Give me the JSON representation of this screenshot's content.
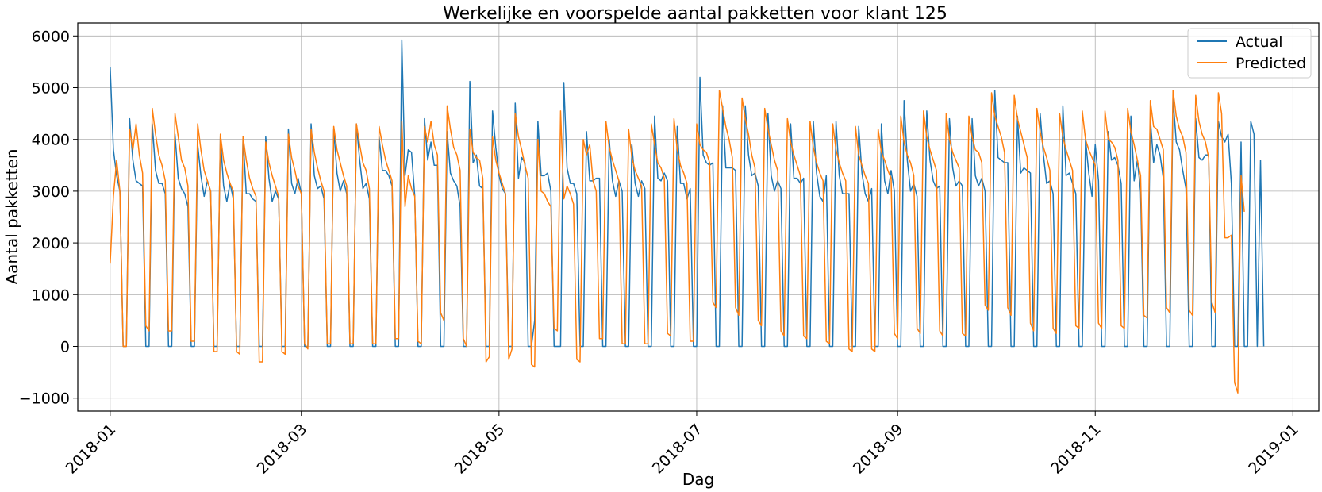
{
  "chart_data": {
    "type": "line",
    "title": "Werkelijke en voorspelde aantal pakketten voor klant 125",
    "xlabel": "Dag",
    "ylabel": "Aantal pakketten",
    "x_start": "2018-01-01",
    "x_end": "2018-12-31",
    "xlim": [
      "2017-12-22",
      "2019-01-09"
    ],
    "ylim": [
      -1250,
      6250
    ],
    "x_ticks": [
      "2018-01",
      "2018-03",
      "2018-05",
      "2018-07",
      "2018-09",
      "2018-11",
      "2019-01"
    ],
    "y_ticks": [
      -1000,
      0,
      1000,
      2000,
      3000,
      4000,
      5000,
      6000
    ],
    "grid": true,
    "legend_position": "top-right",
    "series": [
      {
        "name": "Actual",
        "color": "#1f77b4",
        "values": [
          5400,
          3800,
          3300,
          3000,
          0,
          0,
          4400,
          3600,
          3200,
          3150,
          3100,
          0,
          0,
          4300,
          3400,
          3150,
          3150,
          2950,
          0,
          0,
          4100,
          3250,
          3050,
          2950,
          2700,
          0,
          0,
          3900,
          3300,
          2900,
          3200,
          3000,
          0,
          0,
          4050,
          3100,
          2800,
          3150,
          2850,
          0,
          0,
          4050,
          2950,
          2950,
          2850,
          2800,
          0,
          0,
          4050,
          3250,
          2800,
          3000,
          2850,
          0,
          0,
          4200,
          3150,
          2950,
          3250,
          2950,
          0,
          0,
          4300,
          3300,
          3050,
          3100,
          2850,
          0,
          0,
          4200,
          3350,
          3000,
          3200,
          2950,
          0,
          0,
          4300,
          3600,
          3050,
          3150,
          2850,
          0,
          0,
          4050,
          3400,
          3400,
          3300,
          3100,
          0,
          0,
          5920,
          3300,
          3800,
          3750,
          2900,
          0,
          0,
          4400,
          3600,
          3950,
          3500,
          3500,
          0,
          0,
          4150,
          3350,
          3200,
          3100,
          2700,
          0,
          0,
          5120,
          3550,
          3700,
          3100,
          3050,
          0,
          0,
          4550,
          3850,
          3300,
          3050,
          2950,
          0,
          0,
          4700,
          3250,
          3650,
          3550,
          0,
          0,
          500,
          4350,
          3300,
          3300,
          3350,
          3000,
          0,
          0,
          0,
          5100,
          3450,
          3150,
          3150,
          2950,
          0,
          0,
          4150,
          3200,
          3200,
          3250,
          3250,
          0,
          0,
          4000,
          3200,
          2900,
          3200,
          3000,
          0,
          0,
          3900,
          3150,
          2900,
          3200,
          3050,
          0,
          0,
          4450,
          3250,
          3200,
          3350,
          3200,
          0,
          0,
          4250,
          3150,
          3150,
          2850,
          3050,
          0,
          0,
          5200,
          3700,
          3550,
          3500,
          3550,
          0,
          0,
          4650,
          3450,
          3450,
          3450,
          3400,
          0,
          0,
          4650,
          3700,
          3300,
          3350,
          3100,
          0,
          0,
          4500,
          3300,
          3000,
          3200,
          3050,
          0,
          0,
          4300,
          3250,
          3250,
          3150,
          3250,
          0,
          0,
          4350,
          3350,
          2900,
          2800,
          3300,
          0,
          0,
          4350,
          3300,
          2950,
          2950,
          2950,
          0,
          0,
          4250,
          3350,
          2950,
          2800,
          3050,
          0,
          0,
          4300,
          3200,
          2950,
          3400,
          3000,
          0,
          0,
          4750,
          3600,
          3000,
          3150,
          2900,
          0,
          0,
          4550,
          3600,
          3200,
          3050,
          3100,
          0,
          0,
          4400,
          3450,
          3100,
          3200,
          3100,
          0,
          0,
          4400,
          3300,
          3100,
          3250,
          3000,
          0,
          0,
          4950,
          3650,
          3600,
          3550,
          3550,
          0,
          0,
          4450,
          3350,
          3450,
          3400,
          3350,
          0,
          0,
          4500,
          3700,
          3150,
          3200,
          2950,
          0,
          0,
          4650,
          3300,
          3350,
          3150,
          2950,
          0,
          0,
          4000,
          3350,
          2900,
          3900,
          3200,
          0,
          0,
          4150,
          3600,
          3650,
          3500,
          3150,
          0,
          0,
          4450,
          3200,
          3600,
          3000,
          0,
          0,
          4400,
          3550,
          3900,
          3700,
          3250,
          0,
          0,
          4800,
          3950,
          3800,
          3400,
          3050,
          0,
          0,
          4400,
          3650,
          3600,
          3700,
          3700,
          0,
          0,
          4350,
          4050,
          3950,
          4100,
          3150,
          0,
          0,
          3950,
          0,
          0,
          4350,
          4100,
          0,
          3600,
          0
        ]
      },
      {
        "name": "Predicted",
        "color": "#ff7f0e",
        "values": [
          1600,
          2900,
          3600,
          3000,
          0,
          0,
          4200,
          3800,
          4300,
          3700,
          3350,
          400,
          300,
          4600,
          4100,
          3700,
          3500,
          3200,
          300,
          300,
          4500,
          4050,
          3600,
          3450,
          3100,
          100,
          100,
          4300,
          3800,
          3400,
          3200,
          3000,
          -100,
          -100,
          4100,
          3600,
          3350,
          3150,
          3000,
          -100,
          -150,
          4050,
          3600,
          3250,
          3050,
          2900,
          -300,
          -300,
          3950,
          3550,
          3300,
          3100,
          2900,
          -100,
          -150,
          4100,
          3650,
          3400,
          3100,
          2950,
          50,
          -50,
          4200,
          3750,
          3450,
          3200,
          3000,
          50,
          50,
          4250,
          3800,
          3550,
          3300,
          3100,
          50,
          50,
          4300,
          3900,
          3550,
          3400,
          3050,
          50,
          50,
          4250,
          3900,
          3600,
          3400,
          3200,
          150,
          150,
          4350,
          2700,
          3300,
          3050,
          2900,
          100,
          50,
          4250,
          3950,
          4350,
          3900,
          3700,
          650,
          500,
          4650,
          4200,
          3850,
          3700,
          3400,
          150,
          0,
          4200,
          3750,
          3650,
          3600,
          3250,
          -300,
          -200,
          4050,
          3600,
          3350,
          3150,
          2950,
          -250,
          -50,
          4500,
          4050,
          3800,
          3500,
          3250,
          -350,
          -400,
          4000,
          3000,
          2950,
          2800,
          2700,
          350,
          300,
          4550,
          2850,
          3100,
          2950,
          2750,
          -250,
          -300,
          4000,
          3700,
          3900,
          3200,
          3000,
          150,
          150,
          4350,
          3850,
          3600,
          3400,
          3200,
          50,
          50,
          4200,
          3650,
          3400,
          3250,
          3100,
          50,
          50,
          4300,
          3900,
          3550,
          3450,
          3250,
          250,
          200,
          4400,
          3800,
          3500,
          3350,
          3150,
          100,
          100,
          4300,
          3900,
          3800,
          3750,
          3550,
          850,
          750,
          4950,
          4600,
          4250,
          4000,
          3650,
          750,
          600,
          4800,
          4400,
          4100,
          3700,
          3450,
          500,
          400,
          4600,
          4200,
          3900,
          3600,
          3400,
          300,
          200,
          4400,
          3950,
          3700,
          3500,
          3300,
          200,
          150,
          4350,
          3850,
          3550,
          3350,
          3200,
          100,
          50,
          4300,
          3800,
          3550,
          3350,
          3200,
          -50,
          -100,
          4250,
          3700,
          3500,
          3300,
          3150,
          -50,
          -100,
          4200,
          3750,
          3600,
          3400,
          3250,
          250,
          150,
          4450,
          3950,
          3700,
          3550,
          3300,
          350,
          250,
          4550,
          4050,
          3800,
          3600,
          3400,
          300,
          200,
          4500,
          4000,
          3750,
          3600,
          3450,
          250,
          200,
          4450,
          4050,
          3800,
          3750,
          3550,
          800,
          700,
          4900,
          4450,
          4250,
          4050,
          3750,
          750,
          600,
          4850,
          4400,
          4150,
          3900,
          3650,
          450,
          300,
          4600,
          4150,
          3850,
          3650,
          3400,
          350,
          250,
          4500,
          4050,
          3800,
          3600,
          3400,
          400,
          350,
          4550,
          4000,
          3800,
          3650,
          3500,
          450,
          350,
          4550,
          4000,
          3950,
          3850,
          3600,
          400,
          350,
          4600,
          4150,
          3900,
          3600,
          3300,
          600,
          550,
          4750,
          4250,
          4200,
          4000,
          3800,
          750,
          650,
          4950,
          4450,
          4200,
          4050,
          3750,
          700,
          600,
          4850,
          4350,
          4100,
          3950,
          3650,
          850,
          650,
          4900,
          4500,
          2100,
          2100,
          2150,
          -700,
          -900,
          3300,
          2600
        ]
      }
    ]
  }
}
